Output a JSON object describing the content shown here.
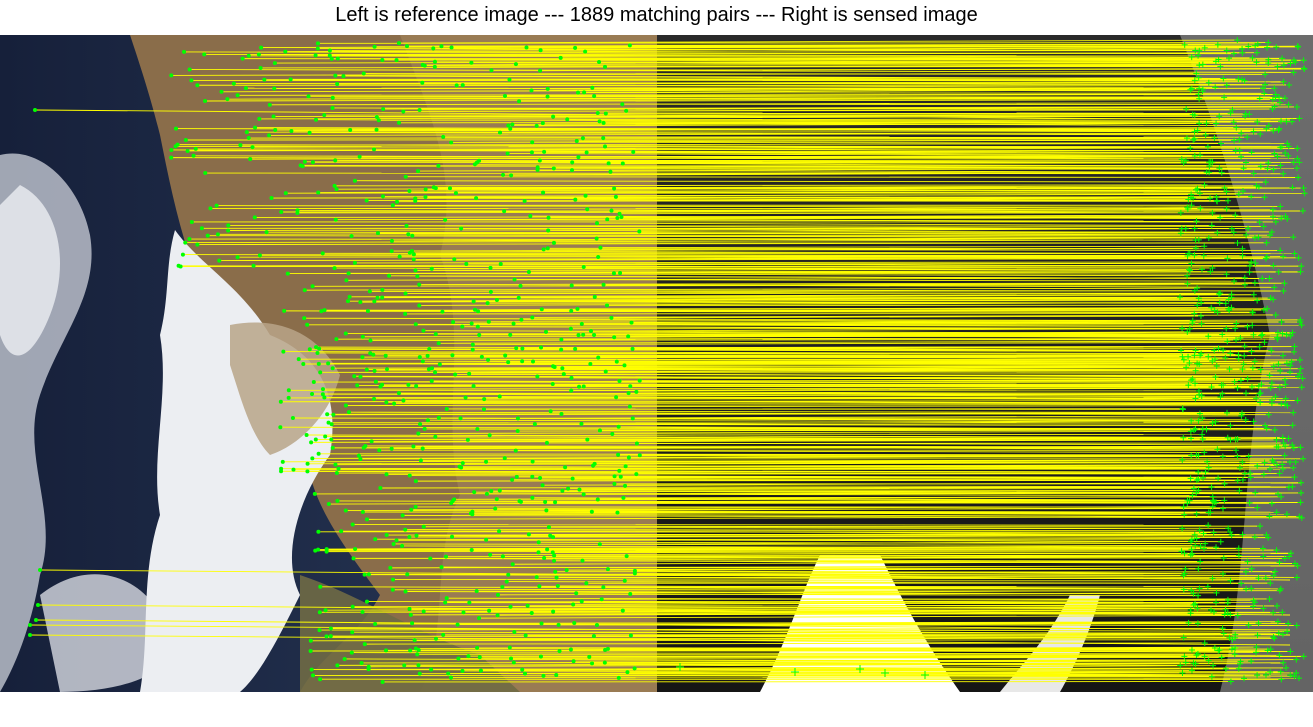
{
  "title": "Left is reference image --- 1889 matching pairs --- Right is sensed image",
  "panels": {
    "left": {
      "name": "reference image",
      "type": "satellite optical (true color)"
    },
    "right": {
      "name": "sensed image",
      "type": "satellite grayscale"
    }
  },
  "overlay": {
    "match_line_color": "#ffff00",
    "left_marker_color": "#00ff00",
    "left_marker": "dot",
    "right_marker_color": "#00ff00",
    "right_marker": "plus"
  },
  "colors": {
    "ocean": "#1e2b4a",
    "cloud": "#e6e6ea",
    "land": "#8a6d4a",
    "smoke": "#b8a488",
    "sensed_bg": "#1a1a1a",
    "sensed_bright": "#ffffff"
  }
}
